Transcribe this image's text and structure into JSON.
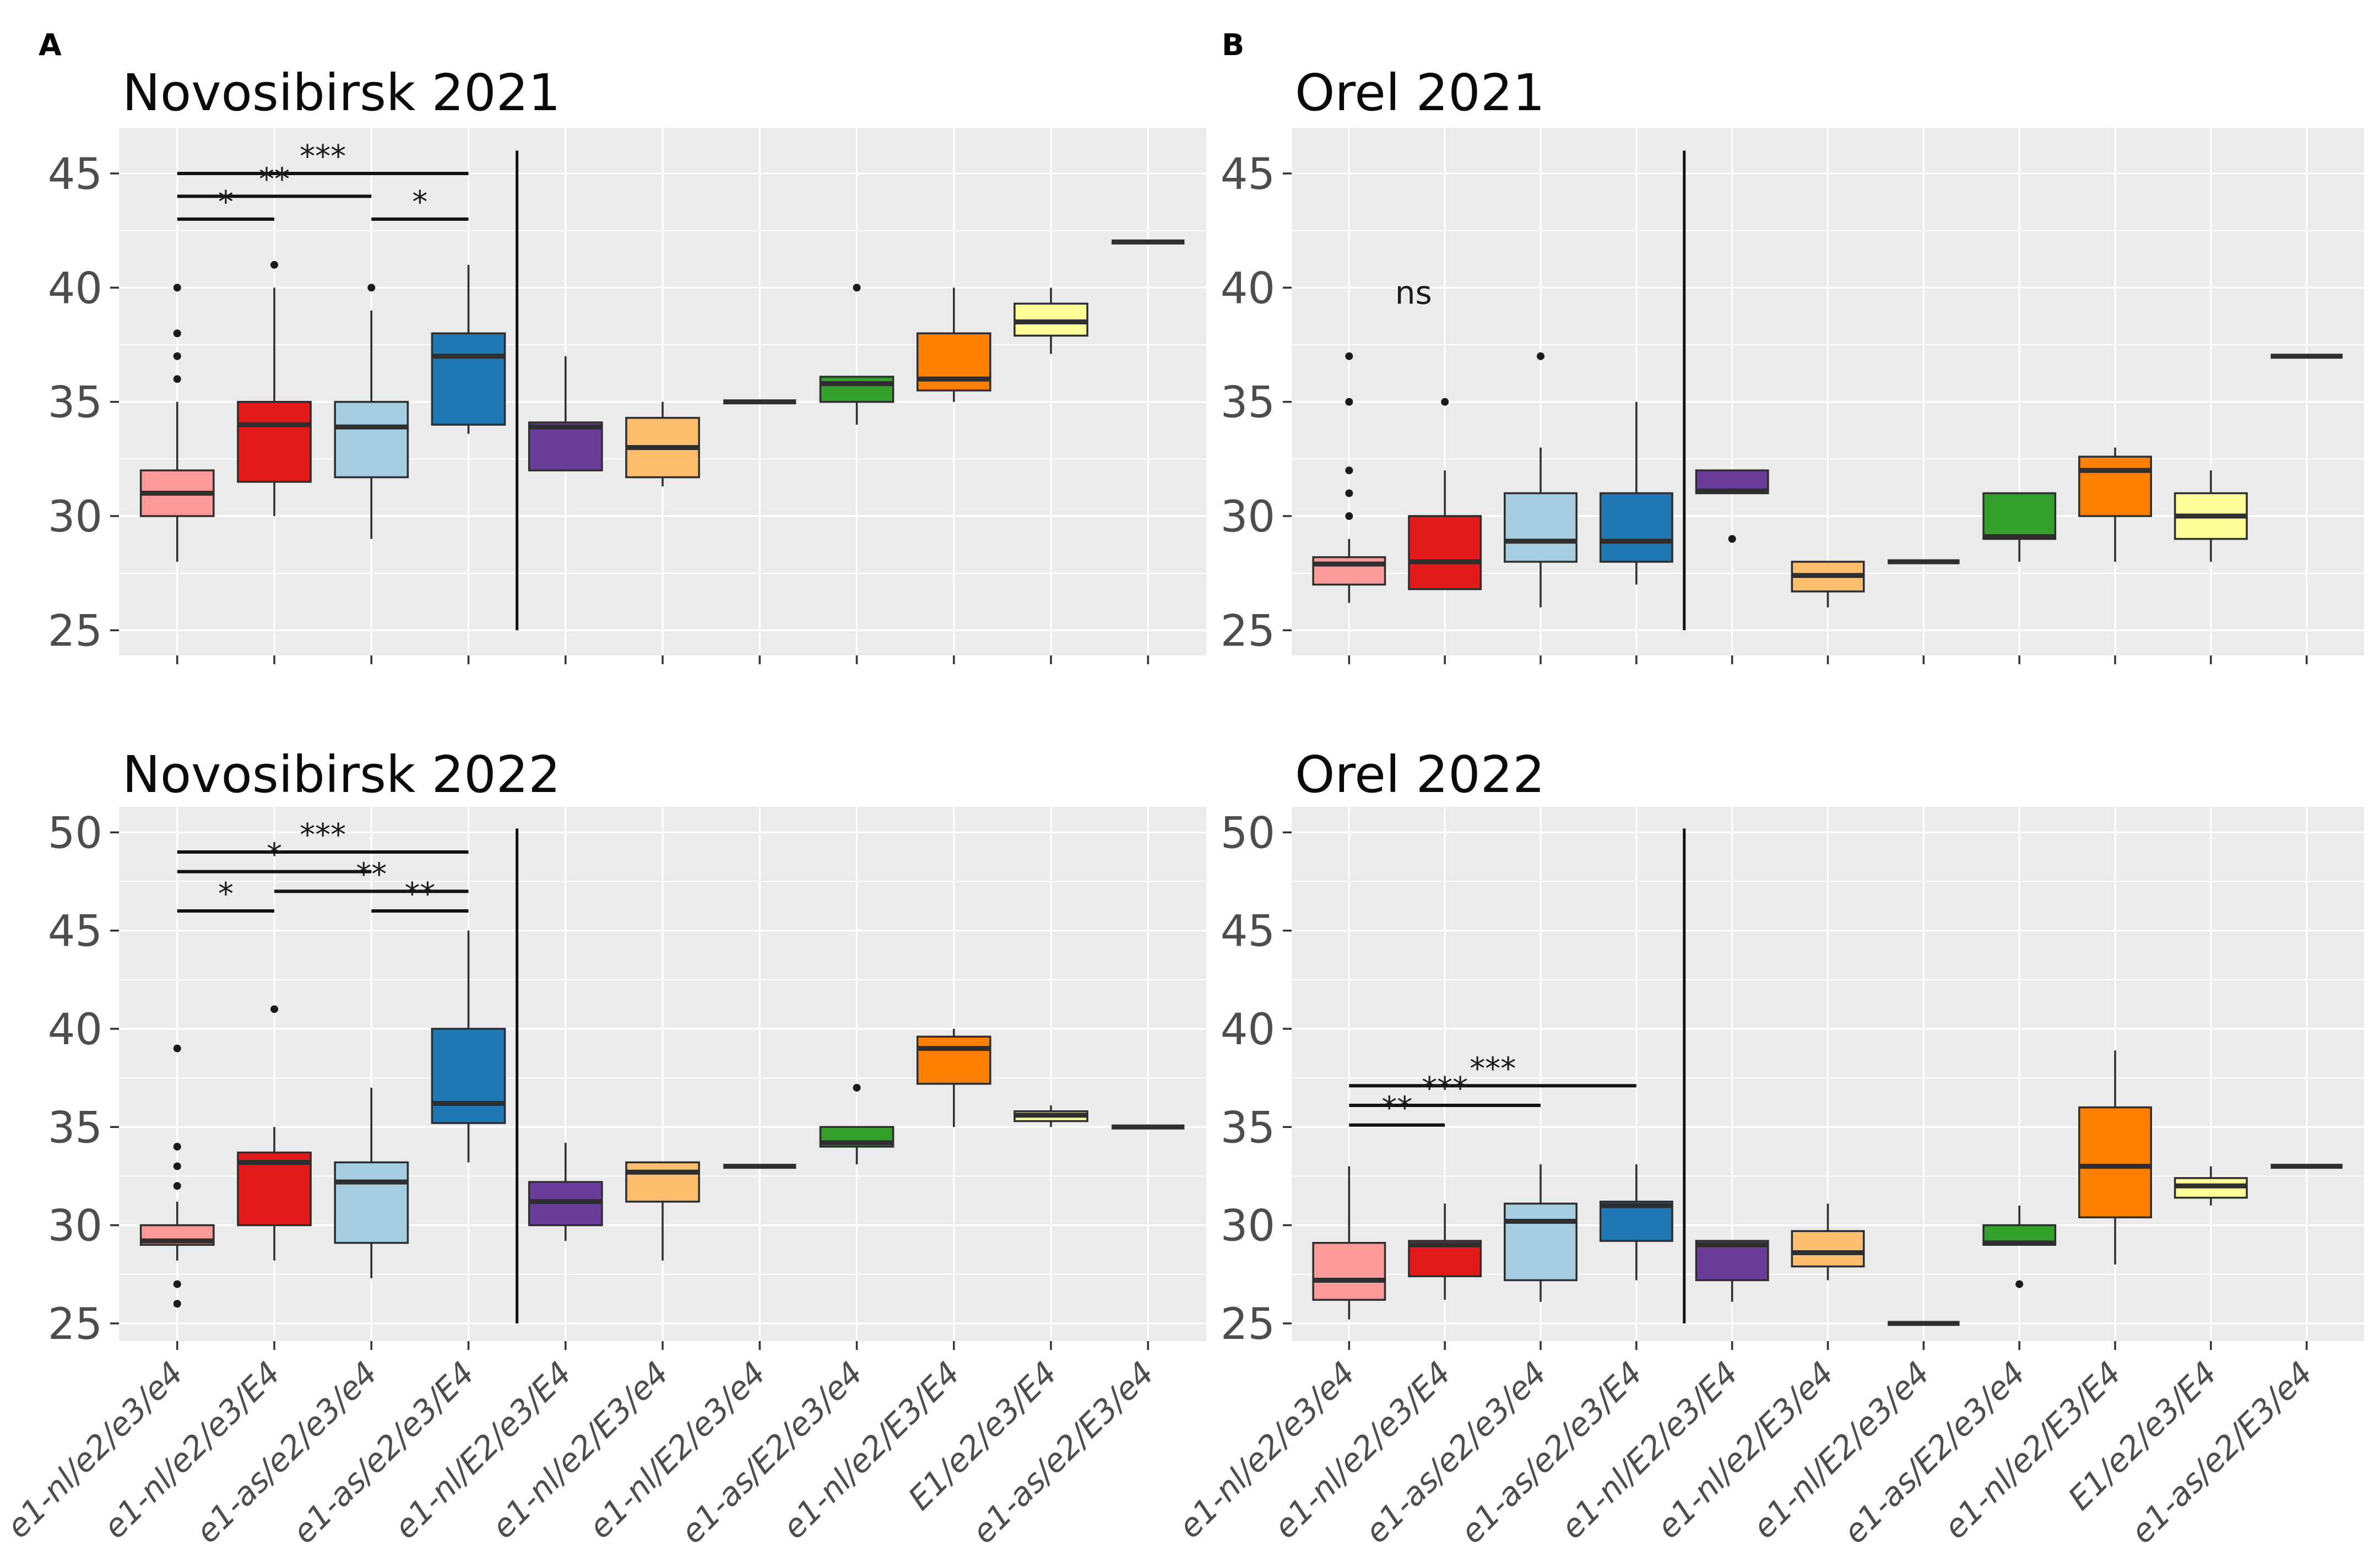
{
  "columns": [
    {
      "label": "A"
    },
    {
      "label": "B"
    }
  ],
  "categories": [
    "e1-nl/e2/e3/e4",
    "e1-nl/e2/e3/E4",
    "e1-as/e2/e3/e4",
    "e1-as/e2/e3/E4",
    "e1-nl/E2/e3/E4",
    "e1-nl/e2/E3/e4",
    "e1-nl/E2/e3/e4",
    "e1-as/E2/e3/e4",
    "e1-nl/e2/E3/E4",
    "E1/e2/e3/E4",
    "e1-as/e2/E3/e4"
  ],
  "style": {
    "panel_background": "#EBEBEB",
    "gridline_color": "#FFFFFF",
    "box_edge_color": "#2e2e2e",
    "axis_text_color": "#4d4d4d",
    "outlier_color": "#1a1a1a",
    "separator_color": "#111111"
  },
  "chart_data": [
    {
      "type": "boxplot",
      "title": "Novosibirsk 2021",
      "ylim": [
        23.9,
        47.0
      ],
      "yticks": [
        25,
        30,
        35,
        40,
        45
      ],
      "separator_between": [
        4,
        5
      ],
      "separator_span": [
        25,
        46
      ],
      "significance": [
        {
          "groups": [
            1,
            4
          ],
          "label": "***",
          "y": 45
        },
        {
          "groups": [
            1,
            3
          ],
          "label": "**",
          "y": 44
        },
        {
          "groups": [
            1,
            2
          ],
          "label": "*",
          "y": 43
        },
        {
          "groups": [
            3,
            4
          ],
          "label": "*",
          "y": 43
        }
      ],
      "boxes": [
        {
          "category": "e1-nl/e2/e3/e4",
          "color": "#FB9A99",
          "whislo": 28,
          "q1": 30,
          "med": 31,
          "q3": 32,
          "whishi": 35,
          "outliers": [
            36,
            37,
            38,
            40
          ]
        },
        {
          "category": "e1-nl/e2/e3/E4",
          "color": "#E31A1C",
          "whislo": 30,
          "q1": 31.5,
          "med": 34,
          "q3": 35,
          "whishi": 40,
          "outliers": [
            41
          ]
        },
        {
          "category": "e1-as/e2/e3/e4",
          "color": "#A6CEE3",
          "whislo": 29,
          "q1": 31.7,
          "med": 33.9,
          "q3": 35,
          "whishi": 39,
          "outliers": [
            40
          ]
        },
        {
          "category": "e1-as/e2/e3/E4",
          "color": "#1F78B4",
          "whislo": 33.6,
          "q1": 34,
          "med": 37,
          "q3": 38,
          "whishi": 41,
          "outliers": []
        },
        {
          "category": "e1-nl/E2/e3/E4",
          "color": "#6A3D9A",
          "whislo": 32,
          "q1": 32,
          "med": 33.9,
          "q3": 34.1,
          "whishi": 37,
          "outliers": []
        },
        {
          "category": "e1-nl/e2/E3/e4",
          "color": "#FDBF6F",
          "whislo": 31.3,
          "q1": 31.7,
          "med": 33,
          "q3": 34.3,
          "whishi": 35,
          "outliers": []
        },
        {
          "category": "e1-nl/E2/e3/e4",
          "flat": true,
          "med": 35
        },
        {
          "category": "e1-as/E2/e3/e4",
          "color": "#33A02C",
          "whislo": 34,
          "q1": 35,
          "med": 35.8,
          "q3": 36.1,
          "whishi": 36.1,
          "outliers": [
            40
          ]
        },
        {
          "category": "e1-nl/e2/E3/E4",
          "color": "#FF7F00",
          "whislo": 35,
          "q1": 35.5,
          "med": 36,
          "q3": 38,
          "whishi": 40,
          "outliers": []
        },
        {
          "category": "E1/e2/e3/E4",
          "color": "#FFFF99",
          "whislo": 37.1,
          "q1": 37.9,
          "med": 38.5,
          "q3": 39.3,
          "whishi": 40,
          "outliers": []
        },
        {
          "category": "e1-as/e2/E3/e4",
          "flat": true,
          "med": 42
        }
      ]
    },
    {
      "type": "boxplot",
      "title": "Orel 2021",
      "ylim": [
        23.9,
        47.0
      ],
      "yticks": [
        25,
        30,
        35,
        40,
        45
      ],
      "separator_between": [
        4,
        5
      ],
      "separator_span": [
        25,
        46
      ],
      "annotation": {
        "label": "ns",
        "between_groups": [
          1,
          2
        ],
        "y": 39.3
      },
      "significance": [],
      "boxes": [
        {
          "category": "e1-nl/e2/e3/e4",
          "color": "#FB9A99",
          "whislo": 26.2,
          "q1": 27,
          "med": 27.9,
          "q3": 28.2,
          "whishi": 29,
          "outliers": [
            30,
            31,
            32,
            35,
            37
          ]
        },
        {
          "category": "e1-nl/e2/e3/E4",
          "color": "#E31A1C",
          "whislo": 26.8,
          "q1": 26.8,
          "med": 28,
          "q3": 30,
          "whishi": 32,
          "outliers": [
            35
          ]
        },
        {
          "category": "e1-as/e2/e3/e4",
          "color": "#A6CEE3",
          "whislo": 26,
          "q1": 28,
          "med": 28.9,
          "q3": 31,
          "whishi": 33,
          "outliers": [
            37
          ]
        },
        {
          "category": "e1-as/e2/e3/E4",
          "color": "#1F78B4",
          "whislo": 27,
          "q1": 28,
          "med": 28.9,
          "q3": 31,
          "whishi": 35,
          "outliers": []
        },
        {
          "category": "e1-nl/E2/e3/E4",
          "color": "#6A3D9A",
          "whislo": 31,
          "q1": 31,
          "med": 31.1,
          "q3": 32,
          "whishi": 32,
          "outliers": [
            29
          ]
        },
        {
          "category": "e1-nl/e2/E3/e4",
          "color": "#FDBF6F",
          "whislo": 26,
          "q1": 26.7,
          "med": 27.4,
          "q3": 28,
          "whishi": 28,
          "outliers": []
        },
        {
          "category": "e1-nl/E2/e3/e4",
          "flat": true,
          "med": 28
        },
        {
          "category": "e1-as/E2/e3/e4",
          "color": "#33A02C",
          "whislo": 28,
          "q1": 29,
          "med": 29.1,
          "q3": 31,
          "whishi": 31,
          "outliers": []
        },
        {
          "category": "e1-nl/e2/E3/E4",
          "color": "#FF7F00",
          "whislo": 28,
          "q1": 30,
          "med": 32,
          "q3": 32.6,
          "whishi": 33,
          "outliers": []
        },
        {
          "category": "E1/e2/e3/E4",
          "color": "#FFFF99",
          "whislo": 28,
          "q1": 29,
          "med": 30,
          "q3": 31,
          "whishi": 32,
          "outliers": []
        },
        {
          "category": "e1-as/e2/E3/e4",
          "flat": true,
          "med": 37
        }
      ]
    },
    {
      "type": "boxplot",
      "title": "Novosibirsk 2022",
      "ylim": [
        24.1,
        51.3
      ],
      "yticks": [
        25,
        30,
        35,
        40,
        45,
        50
      ],
      "separator_between": [
        4,
        5
      ],
      "separator_span": [
        25,
        50.2
      ],
      "significance": [
        {
          "groups": [
            1,
            4
          ],
          "label": "***",
          "y": 49
        },
        {
          "groups": [
            1,
            3
          ],
          "label": "*",
          "y": 48
        },
        {
          "groups": [
            2,
            4
          ],
          "label": "**",
          "y": 47
        },
        {
          "groups": [
            1,
            2
          ],
          "label": "*",
          "y": 46
        },
        {
          "groups": [
            3,
            4
          ],
          "label": "**",
          "y": 46
        }
      ],
      "boxes": [
        {
          "category": "e1-nl/e2/e3/e4",
          "color": "#FB9A99",
          "whislo": 28.2,
          "q1": 29,
          "med": 29.2,
          "q3": 30,
          "whishi": 31.2,
          "outliers": [
            26,
            27,
            32,
            33,
            34,
            39
          ]
        },
        {
          "category": "e1-nl/e2/e3/E4",
          "color": "#E31A1C",
          "whislo": 28.2,
          "q1": 30,
          "med": 33.2,
          "q3": 33.7,
          "whishi": 35,
          "outliers": [
            41
          ]
        },
        {
          "category": "e1-as/e2/e3/e4",
          "color": "#A6CEE3",
          "whislo": 27.3,
          "q1": 29.1,
          "med": 32.2,
          "q3": 33.2,
          "whishi": 37,
          "outliers": []
        },
        {
          "category": "e1-as/e2/e3/E4",
          "color": "#1F78B4",
          "whislo": 33.2,
          "q1": 35.2,
          "med": 36.2,
          "q3": 40,
          "whishi": 45,
          "outliers": []
        },
        {
          "category": "e1-nl/E2/e3/E4",
          "color": "#6A3D9A",
          "whislo": 29.2,
          "q1": 30,
          "med": 31.2,
          "q3": 32.2,
          "whishi": 34.2,
          "outliers": []
        },
        {
          "category": "e1-nl/e2/E3/e4",
          "color": "#FDBF6F",
          "whislo": 28.2,
          "q1": 31.2,
          "med": 32.7,
          "q3": 33.2,
          "whishi": 33.2,
          "outliers": []
        },
        {
          "category": "e1-nl/E2/e3/e4",
          "flat": true,
          "med": 33
        },
        {
          "category": "e1-as/E2/e3/e4",
          "color": "#33A02C",
          "whislo": 33.1,
          "q1": 34,
          "med": 34.2,
          "q3": 35,
          "whishi": 35,
          "outliers": [
            37
          ]
        },
        {
          "category": "e1-nl/e2/E3/E4",
          "color": "#FF7F00",
          "whislo": 35,
          "q1": 37.2,
          "med": 39,
          "q3": 39.6,
          "whishi": 40,
          "outliers": []
        },
        {
          "category": "E1/e2/e3/E4",
          "color": "#FFFF99",
          "whislo": 35,
          "q1": 35.3,
          "med": 35.6,
          "q3": 35.8,
          "whishi": 36.1,
          "outliers": []
        },
        {
          "category": "e1-as/e2/E3/e4",
          "flat": true,
          "med": 35
        }
      ]
    },
    {
      "type": "boxplot",
      "title": "Orel 2022",
      "ylim": [
        24.1,
        51.3
      ],
      "yticks": [
        25,
        30,
        35,
        40,
        45,
        50
      ],
      "separator_between": [
        4,
        5
      ],
      "separator_span": [
        25,
        50.2
      ],
      "significance": [
        {
          "groups": [
            1,
            4
          ],
          "label": "***",
          "y": 37.1
        },
        {
          "groups": [
            1,
            3
          ],
          "label": "***",
          "y": 36.1
        },
        {
          "groups": [
            1,
            2
          ],
          "label": "**",
          "y": 35.1
        }
      ],
      "boxes": [
        {
          "category": "e1-nl/e2/e3/e4",
          "color": "#FB9A99",
          "whislo": 25.2,
          "q1": 26.2,
          "med": 27.2,
          "q3": 29.1,
          "whishi": 33,
          "outliers": []
        },
        {
          "category": "e1-nl/e2/e3/E4",
          "color": "#E31A1C",
          "whislo": 26.2,
          "q1": 27.4,
          "med": 29,
          "q3": 29.2,
          "whishi": 31.1,
          "outliers": []
        },
        {
          "category": "e1-as/e2/e3/e4",
          "color": "#A6CEE3",
          "whislo": 26.1,
          "q1": 27.2,
          "med": 30.2,
          "q3": 31.1,
          "whishi": 33.1,
          "outliers": []
        },
        {
          "category": "e1-as/e2/e3/E4",
          "color": "#1F78B4",
          "whislo": 27.2,
          "q1": 29.2,
          "med": 31,
          "q3": 31.2,
          "whishi": 33.1,
          "outliers": []
        },
        {
          "category": "e1-nl/E2/e3/E4",
          "color": "#6A3D9A",
          "whislo": 26.1,
          "q1": 27.2,
          "med": 29,
          "q3": 29.2,
          "whishi": 29.2,
          "outliers": []
        },
        {
          "category": "e1-nl/e2/E3/e4",
          "color": "#FDBF6F",
          "whislo": 27.2,
          "q1": 27.9,
          "med": 28.6,
          "q3": 29.7,
          "whishi": 31.1,
          "outliers": []
        },
        {
          "category": "e1-nl/E2/e3/e4",
          "flat": true,
          "med": 25
        },
        {
          "category": "e1-as/E2/e3/e4",
          "color": "#33A02C",
          "whislo": 29,
          "q1": 29,
          "med": 29.1,
          "q3": 30,
          "whishi": 31,
          "outliers": [
            27
          ]
        },
        {
          "category": "e1-nl/e2/E3/E4",
          "color": "#FF7F00",
          "whislo": 28,
          "q1": 30.4,
          "med": 33,
          "q3": 36,
          "whishi": 38.9,
          "outliers": []
        },
        {
          "category": "E1/e2/e3/E4",
          "color": "#FFFF99",
          "whislo": 31,
          "q1": 31.4,
          "med": 32,
          "q3": 32.4,
          "whishi": 33,
          "outliers": []
        },
        {
          "category": "e1-as/e2/E3/e4",
          "flat": true,
          "med": 33
        }
      ]
    }
  ]
}
